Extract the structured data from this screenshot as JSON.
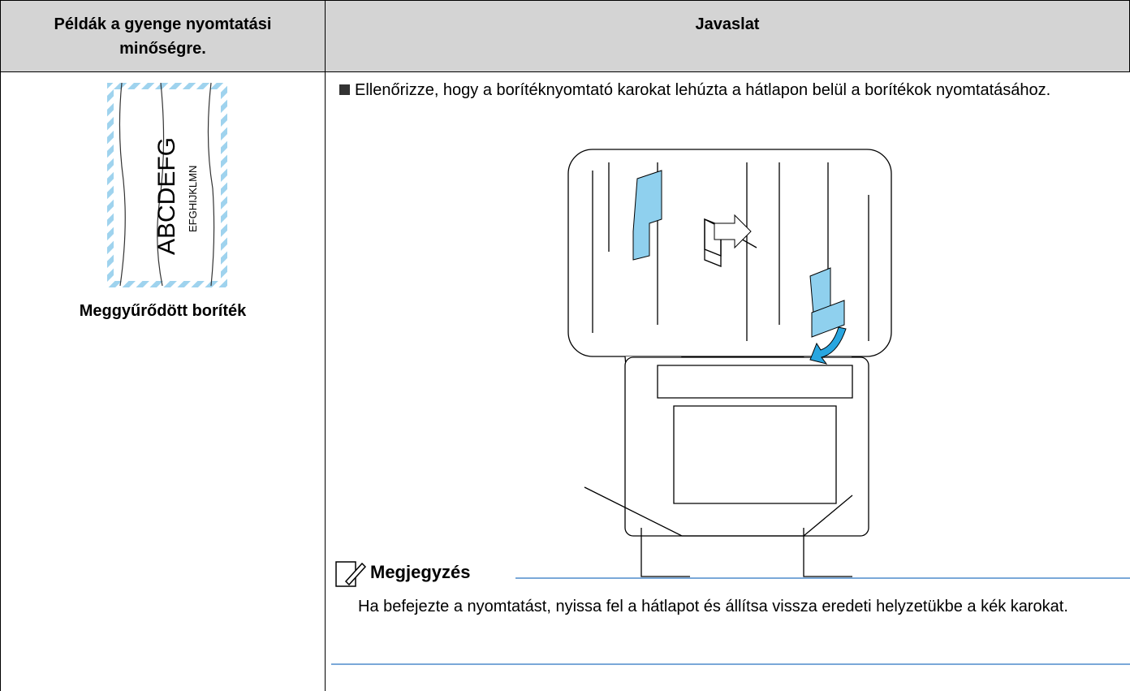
{
  "table": {
    "header": [
      "Példák a gyenge nyomtatási minőségre.",
      "Javaslat"
    ],
    "example": {
      "envelope_text_large": "ABCDEFG",
      "envelope_text_small": "EFGHIJKLMN",
      "caption": "Meggyűrődött boríték"
    },
    "suggestion": {
      "bullet": "Ellenőrizze, hogy a borítéknyomtató karokat lehúzta a hátlapon belül a borítékok nyomtatásához.",
      "note_title": "Megjegyzés",
      "note_text": "Ha befejezte a nyomtatást, nyissa fel a hátlapot és állítsa vissza eredeti helyzetükbe a kék karokat."
    }
  }
}
